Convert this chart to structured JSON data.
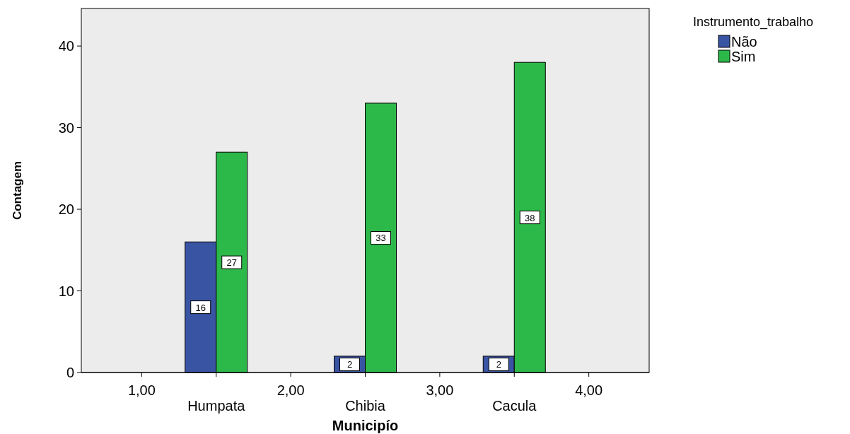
{
  "chart_data": {
    "type": "bar",
    "xlabel": "Municipío",
    "ylabel": "Contagem",
    "legend_title": "Instrumento_trabalho",
    "legend": "top right",
    "data_labels": true,
    "grid": false,
    "categories": [
      "1,00",
      "Humpata",
      "2,00",
      "Chibia",
      "3,00",
      "Cacula",
      "4,00"
    ],
    "ylim": [
      0,
      44.6
    ],
    "yticks": [
      0,
      10,
      20,
      30,
      40
    ],
    "series": [
      {
        "name": "Não",
        "color": "#3a54a4",
        "values": [
          null,
          16,
          null,
          2,
          null,
          2,
          null
        ]
      },
      {
        "name": "Sim",
        "color": "#2db84a",
        "values": [
          null,
          27,
          null,
          33,
          null,
          38,
          null
        ]
      }
    ]
  }
}
